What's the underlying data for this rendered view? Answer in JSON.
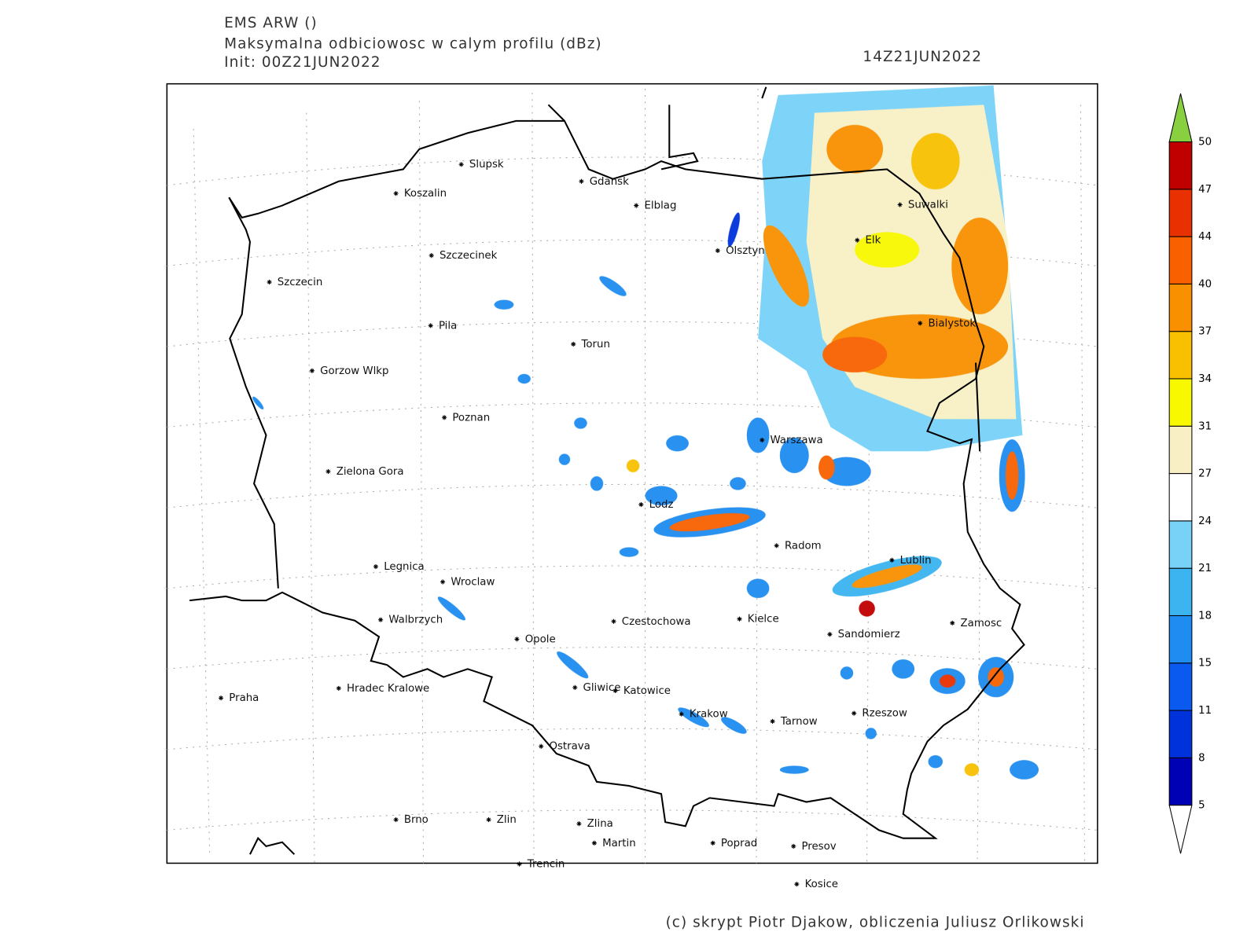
{
  "header": {
    "model": "EMS ARW ()",
    "title": "Maksymalna odbiciowosc w calym profilu (dBz)",
    "init": "Init: 00Z21JUN2022",
    "valid": "14Z21JUN2022"
  },
  "cities": [
    "Slupsk",
    "Koszalin",
    "Gdansk",
    "Elblag",
    "Szczecinek",
    "Szczecin",
    "Olsztyn",
    "Suwalki",
    "Elk",
    "Pila",
    "Torun",
    "Bialystok",
    "Gorzow Wlkp",
    "Poznan",
    "Warszawa",
    "Zielona Gora",
    "Lodz",
    "Radom",
    "Lublin",
    "Legnica",
    "Wroclaw",
    "Walbrzych",
    "Czestochowa",
    "Kielce",
    "Zamosc",
    "Sandomierz",
    "Opole",
    "Praha",
    "Hradec Kralowe",
    "Gliwice",
    "Katowice",
    "Krakow",
    "Tarnow",
    "Rzeszow",
    "Ostrava",
    "Brno",
    "Zlin",
    "Zlina",
    "Martin",
    "Poprad",
    "Presov",
    "Trencin",
    "Kosice"
  ],
  "colorbar": {
    "levels": [
      5,
      8,
      11,
      15,
      18,
      21,
      24,
      27,
      31,
      34,
      37,
      40,
      44,
      47,
      50
    ],
    "colors": [
      "#0000b4",
      "#0032dc",
      "#0a5af0",
      "#1e8cf0",
      "#3cb4f0",
      "#78d2f8",
      "#ffffff",
      "#f8f0c4",
      "#f8f800",
      "#f8c000",
      "#f89000",
      "#f86000",
      "#e83000",
      "#c00000"
    ],
    "under_color": "#ffffff",
    "over_color": "#88d040"
  },
  "footer": "(c) skrypt Piotr Djakow, obliczenia Juliusz Orlikowski"
}
